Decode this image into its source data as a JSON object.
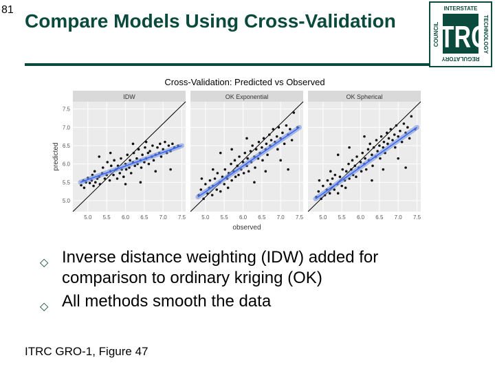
{
  "slide": {
    "number": "81",
    "title": "Compare Models Using Cross-Validation",
    "bullets": [
      "Inverse distance weighting (IDW) added for comparison to ordinary kriging (OK)",
      "All methods smooth the data"
    ],
    "source": "ITRC GRO-1, Figure 47",
    "bullet_marker": "hollow-diamond",
    "accent_color": "#0a4a3c"
  },
  "logo": {
    "letters": "ITRC",
    "text_top": "INTERSTATE",
    "text_left": "COUNCIL",
    "text_right": "TECHNOLOGY",
    "text_bottom": "REGULATORY"
  },
  "chart_data": {
    "type": "scatter",
    "title": "Cross-Validation: Predicted vs Observed",
    "xlabel": "observed",
    "ylabel": "predicted",
    "xlim": [
      4.6,
      7.6
    ],
    "ylim": [
      4.7,
      7.7
    ],
    "xticks": [
      "5.0",
      "5.5",
      "6.0",
      "6.5",
      "7.0",
      "7.5"
    ],
    "yticks": [
      "5.0",
      "5.5",
      "6.0",
      "6.5",
      "7.0",
      "7.5"
    ],
    "grid": true,
    "reference_line": "1:1",
    "panels": [
      {
        "name": "IDW",
        "fit": {
          "x": [
            4.8,
            7.5
          ],
          "y": [
            5.5,
            6.5
          ]
        },
        "points": [
          [
            4.82,
            5.42
          ],
          [
            4.88,
            5.55
          ],
          [
            4.95,
            5.5
          ],
          [
            5.0,
            5.62
          ],
          [
            5.05,
            5.48
          ],
          [
            5.1,
            5.55
          ],
          [
            5.12,
            5.7
          ],
          [
            5.18,
            5.8
          ],
          [
            5.2,
            5.5
          ],
          [
            5.25,
            5.6
          ],
          [
            5.3,
            5.65
          ],
          [
            5.32,
            5.45
          ],
          [
            5.38,
            5.75
          ],
          [
            5.4,
            5.9
          ],
          [
            5.45,
            5.6
          ],
          [
            5.5,
            5.7
          ],
          [
            5.52,
            6.05
          ],
          [
            5.58,
            5.55
          ],
          [
            5.6,
            5.8
          ],
          [
            5.62,
            5.95
          ],
          [
            5.68,
            5.7
          ],
          [
            5.7,
            6.1
          ],
          [
            5.75,
            5.85
          ],
          [
            5.78,
            5.6
          ],
          [
            5.8,
            5.95
          ],
          [
            5.85,
            5.75
          ],
          [
            5.88,
            6.15
          ],
          [
            5.9,
            5.85
          ],
          [
            5.95,
            5.65
          ],
          [
            6.0,
            6.0
          ],
          [
            6.02,
            5.85
          ],
          [
            6.05,
            6.25
          ],
          [
            6.1,
            5.9
          ],
          [
            6.12,
            6.1
          ],
          [
            6.15,
            5.75
          ],
          [
            6.2,
            6.05
          ],
          [
            6.22,
            6.3
          ],
          [
            6.25,
            5.95
          ],
          [
            6.3,
            6.15
          ],
          [
            6.32,
            6.0
          ],
          [
            6.35,
            6.4
          ],
          [
            6.4,
            6.1
          ],
          [
            6.42,
            5.9
          ],
          [
            6.45,
            6.25
          ],
          [
            6.5,
            6.05
          ],
          [
            6.52,
            6.45
          ],
          [
            6.55,
            6.15
          ],
          [
            6.6,
            6.3
          ],
          [
            6.62,
            6.0
          ],
          [
            6.65,
            6.35
          ],
          [
            6.7,
            6.2
          ],
          [
            6.72,
            6.5
          ],
          [
            6.75,
            6.1
          ],
          [
            6.8,
            6.25
          ],
          [
            6.85,
            6.45
          ],
          [
            6.9,
            6.3
          ],
          [
            6.92,
            6.55
          ],
          [
            6.95,
            6.2
          ],
          [
            7.0,
            6.4
          ],
          [
            7.05,
            6.6
          ],
          [
            7.1,
            6.3
          ],
          [
            7.15,
            6.5
          ],
          [
            7.2,
            6.35
          ],
          [
            7.25,
            6.55
          ],
          [
            7.3,
            6.45
          ],
          [
            7.4,
            6.5
          ],
          [
            5.3,
            6.2
          ],
          [
            6.0,
            5.45
          ],
          [
            6.4,
            5.5
          ],
          [
            6.8,
            5.8
          ],
          [
            7.2,
            5.85
          ],
          [
            5.6,
            6.3
          ],
          [
            6.2,
            6.55
          ],
          [
            6.55,
            6.6
          ],
          [
            4.9,
            5.35
          ],
          [
            5.15,
            5.4
          ]
        ]
      },
      {
        "name": "OK Exponential",
        "fit": {
          "x": [
            4.8,
            7.5
          ],
          "y": [
            5.1,
            7.0
          ]
        },
        "points": [
          [
            4.82,
            5.15
          ],
          [
            4.88,
            5.3
          ],
          [
            4.95,
            5.05
          ],
          [
            5.0,
            5.45
          ],
          [
            5.05,
            5.2
          ],
          [
            5.1,
            5.35
          ],
          [
            5.12,
            5.55
          ],
          [
            5.18,
            5.15
          ],
          [
            5.2,
            5.4
          ],
          [
            5.25,
            5.6
          ],
          [
            5.3,
            5.3
          ],
          [
            5.32,
            5.75
          ],
          [
            5.38,
            5.5
          ],
          [
            5.4,
            5.25
          ],
          [
            5.45,
            5.65
          ],
          [
            5.5,
            5.45
          ],
          [
            5.52,
            5.85
          ],
          [
            5.58,
            5.6
          ],
          [
            5.6,
            5.35
          ],
          [
            5.62,
            5.75
          ],
          [
            5.68,
            6.0
          ],
          [
            5.7,
            5.55
          ],
          [
            5.75,
            5.8
          ],
          [
            5.78,
            6.1
          ],
          [
            5.8,
            5.65
          ],
          [
            5.85,
            5.95
          ],
          [
            5.88,
            5.7
          ],
          [
            5.9,
            6.2
          ],
          [
            5.95,
            5.85
          ],
          [
            6.0,
            6.05
          ],
          [
            6.02,
            5.75
          ],
          [
            6.05,
            6.3
          ],
          [
            6.1,
            5.95
          ],
          [
            6.12,
            6.15
          ],
          [
            6.15,
            5.8
          ],
          [
            6.2,
            6.35
          ],
          [
            6.22,
            6.05
          ],
          [
            6.25,
            6.5
          ],
          [
            6.3,
            6.2
          ],
          [
            6.32,
            5.9
          ],
          [
            6.35,
            6.4
          ],
          [
            6.4,
            6.15
          ],
          [
            6.42,
            6.6
          ],
          [
            6.45,
            6.3
          ],
          [
            6.5,
            6.45
          ],
          [
            6.52,
            6.1
          ],
          [
            6.55,
            6.7
          ],
          [
            6.6,
            6.4
          ],
          [
            6.62,
            6.55
          ],
          [
            6.65,
            6.25
          ],
          [
            6.7,
            6.8
          ],
          [
            6.72,
            6.5
          ],
          [
            6.75,
            6.65
          ],
          [
            6.8,
            6.95
          ],
          [
            6.85,
            6.6
          ],
          [
            6.9,
            6.75
          ],
          [
            6.92,
            6.4
          ],
          [
            6.95,
            7.0
          ],
          [
            7.0,
            6.7
          ],
          [
            7.05,
            6.85
          ],
          [
            7.1,
            6.55
          ],
          [
            7.15,
            7.05
          ],
          [
            7.2,
            6.8
          ],
          [
            7.25,
            6.95
          ],
          [
            7.3,
            6.65
          ],
          [
            7.35,
            7.4
          ],
          [
            7.45,
            7.0
          ],
          [
            5.4,
            6.3
          ],
          [
            5.7,
            6.4
          ],
          [
            6.3,
            5.5
          ],
          [
            6.6,
            5.8
          ],
          [
            7.0,
            6.1
          ],
          [
            7.2,
            5.85
          ],
          [
            5.2,
            5.85
          ],
          [
            4.9,
            5.6
          ],
          [
            6.1,
            6.7
          ]
        ]
      },
      {
        "name": "OK Spherical",
        "fit": {
          "x": [
            4.8,
            7.5
          ],
          "y": [
            5.05,
            7.0
          ]
        },
        "points": [
          [
            4.82,
            5.1
          ],
          [
            4.88,
            5.25
          ],
          [
            4.95,
            5.05
          ],
          [
            5.0,
            5.4
          ],
          [
            5.05,
            5.15
          ],
          [
            5.1,
            5.3
          ],
          [
            5.12,
            5.55
          ],
          [
            5.18,
            5.2
          ],
          [
            5.2,
            5.45
          ],
          [
            5.25,
            5.6
          ],
          [
            5.3,
            5.3
          ],
          [
            5.32,
            5.7
          ],
          [
            5.38,
            5.45
          ],
          [
            5.4,
            5.2
          ],
          [
            5.45,
            5.65
          ],
          [
            5.5,
            5.4
          ],
          [
            5.52,
            5.85
          ],
          [
            5.58,
            5.55
          ],
          [
            5.6,
            5.35
          ],
          [
            5.62,
            5.8
          ],
          [
            5.68,
            6.0
          ],
          [
            5.7,
            5.6
          ],
          [
            5.75,
            5.85
          ],
          [
            5.78,
            6.1
          ],
          [
            5.8,
            5.7
          ],
          [
            5.85,
            5.95
          ],
          [
            5.88,
            5.65
          ],
          [
            5.9,
            6.2
          ],
          [
            5.95,
            5.9
          ],
          [
            6.0,
            6.05
          ],
          [
            6.02,
            5.8
          ],
          [
            6.05,
            6.3
          ],
          [
            6.1,
            6.0
          ],
          [
            6.12,
            6.15
          ],
          [
            6.15,
            5.85
          ],
          [
            6.2,
            6.4
          ],
          [
            6.22,
            6.1
          ],
          [
            6.25,
            6.55
          ],
          [
            6.3,
            6.25
          ],
          [
            6.32,
            5.95
          ],
          [
            6.35,
            6.45
          ],
          [
            6.4,
            6.2
          ],
          [
            6.42,
            6.65
          ],
          [
            6.45,
            6.35
          ],
          [
            6.5,
            6.5
          ],
          [
            6.52,
            6.15
          ],
          [
            6.55,
            6.75
          ],
          [
            6.6,
            6.45
          ],
          [
            6.62,
            6.6
          ],
          [
            6.65,
            6.3
          ],
          [
            6.7,
            6.85
          ],
          [
            6.72,
            6.55
          ],
          [
            6.75,
            6.7
          ],
          [
            6.8,
            6.95
          ],
          [
            6.85,
            6.65
          ],
          [
            6.9,
            6.8
          ],
          [
            6.92,
            6.45
          ],
          [
            6.95,
            7.05
          ],
          [
            7.0,
            6.75
          ],
          [
            7.05,
            6.9
          ],
          [
            7.1,
            6.6
          ],
          [
            7.15,
            7.1
          ],
          [
            7.2,
            6.85
          ],
          [
            7.25,
            7.0
          ],
          [
            7.3,
            6.7
          ],
          [
            7.35,
            7.3
          ],
          [
            7.45,
            6.95
          ],
          [
            5.4,
            6.25
          ],
          [
            5.7,
            6.45
          ],
          [
            6.3,
            5.55
          ],
          [
            6.6,
            5.85
          ],
          [
            7.0,
            6.15
          ],
          [
            7.2,
            5.9
          ],
          [
            5.2,
            5.8
          ],
          [
            4.9,
            5.55
          ],
          [
            6.1,
            6.75
          ]
        ]
      }
    ]
  }
}
